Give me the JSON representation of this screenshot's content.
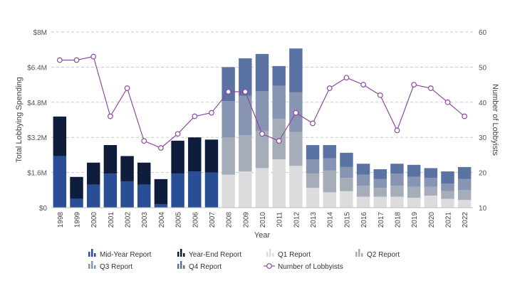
{
  "chart_data": {
    "type": "bar",
    "stacked": true,
    "xlabel": "Year",
    "ylabel": "Total Lobbying Spending",
    "y2label": "Number of Lobbyists",
    "ylim": [
      0,
      8000000
    ],
    "y2lim": [
      10,
      60
    ],
    "yticks": [
      "$0",
      "$1.6M",
      "$3.2M",
      "$4.8M",
      "$6.4M",
      "$8M"
    ],
    "y2ticks": [
      "10",
      "20",
      "30",
      "40",
      "50",
      "60"
    ],
    "grid": true,
    "legend_position": "bottom",
    "categories": [
      "1998",
      "1999",
      "2000",
      "2001",
      "2002",
      "2003",
      "2004",
      "2005",
      "2006",
      "2007",
      "2008",
      "2009",
      "2010",
      "2011",
      "2012",
      "2013",
      "2014",
      "2015",
      "2016",
      "2017",
      "2018",
      "2019",
      "2020",
      "2021",
      "2022"
    ],
    "series": [
      {
        "name": "Mid-Year Report",
        "color": "#2a4e96",
        "values": [
          2350000,
          400000,
          1050000,
          1550000,
          1200000,
          1050000,
          150000,
          1550000,
          1650000,
          1600000,
          0,
          0,
          0,
          0,
          0,
          0,
          0,
          0,
          0,
          0,
          0,
          0,
          0,
          0,
          0
        ]
      },
      {
        "name": "Year-End Report",
        "color": "#0f1d3d",
        "values": [
          1800000,
          1000000,
          1000000,
          1300000,
          1150000,
          1000000,
          1150000,
          1500000,
          1550000,
          1500000,
          0,
          0,
          0,
          0,
          0,
          0,
          0,
          0,
          0,
          0,
          0,
          0,
          0,
          0,
          0
        ]
      },
      {
        "name": "Q1 Report",
        "color": "#dcdcdf",
        "values": [
          0,
          0,
          0,
          0,
          0,
          0,
          0,
          0,
          0,
          0,
          1500000,
          1650000,
          1800000,
          2200000,
          1900000,
          900000,
          700000,
          750000,
          500000,
          500000,
          500000,
          450000,
          550000,
          400000,
          350000
        ]
      },
      {
        "name": "Q2 Report",
        "color": "#a5adb9",
        "values": [
          0,
          0,
          0,
          0,
          0,
          0,
          0,
          0,
          0,
          0,
          1700000,
          1650000,
          1700000,
          1850000,
          1550000,
          650000,
          1000000,
          600000,
          500000,
          400000,
          500000,
          500000,
          400000,
          350000,
          450000
        ]
      },
      {
        "name": "Q3 Report",
        "color": "#8794b2",
        "values": [
          0,
          0,
          0,
          0,
          0,
          0,
          0,
          0,
          0,
          0,
          1650000,
          1800000,
          1800000,
          1500000,
          1800000,
          650000,
          550000,
          500000,
          500000,
          400000,
          550000,
          450000,
          400000,
          350000,
          500000
        ]
      },
      {
        "name": "Q4 Report",
        "color": "#5b73a3",
        "values": [
          0,
          0,
          0,
          0,
          0,
          0,
          0,
          0,
          0,
          0,
          1550000,
          1700000,
          1700000,
          900000,
          2000000,
          650000,
          600000,
          650000,
          500000,
          450000,
          450000,
          550000,
          450000,
          550000,
          550000
        ]
      }
    ],
    "line_series": {
      "name": "Number of Lobbyists",
      "color": "#8e4a9e",
      "values": [
        52,
        52,
        53,
        36,
        44,
        29,
        27,
        31,
        36,
        37,
        43,
        43,
        31,
        29,
        37,
        34,
        44,
        47,
        45,
        42,
        32,
        45,
        44,
        40,
        36
      ]
    }
  }
}
